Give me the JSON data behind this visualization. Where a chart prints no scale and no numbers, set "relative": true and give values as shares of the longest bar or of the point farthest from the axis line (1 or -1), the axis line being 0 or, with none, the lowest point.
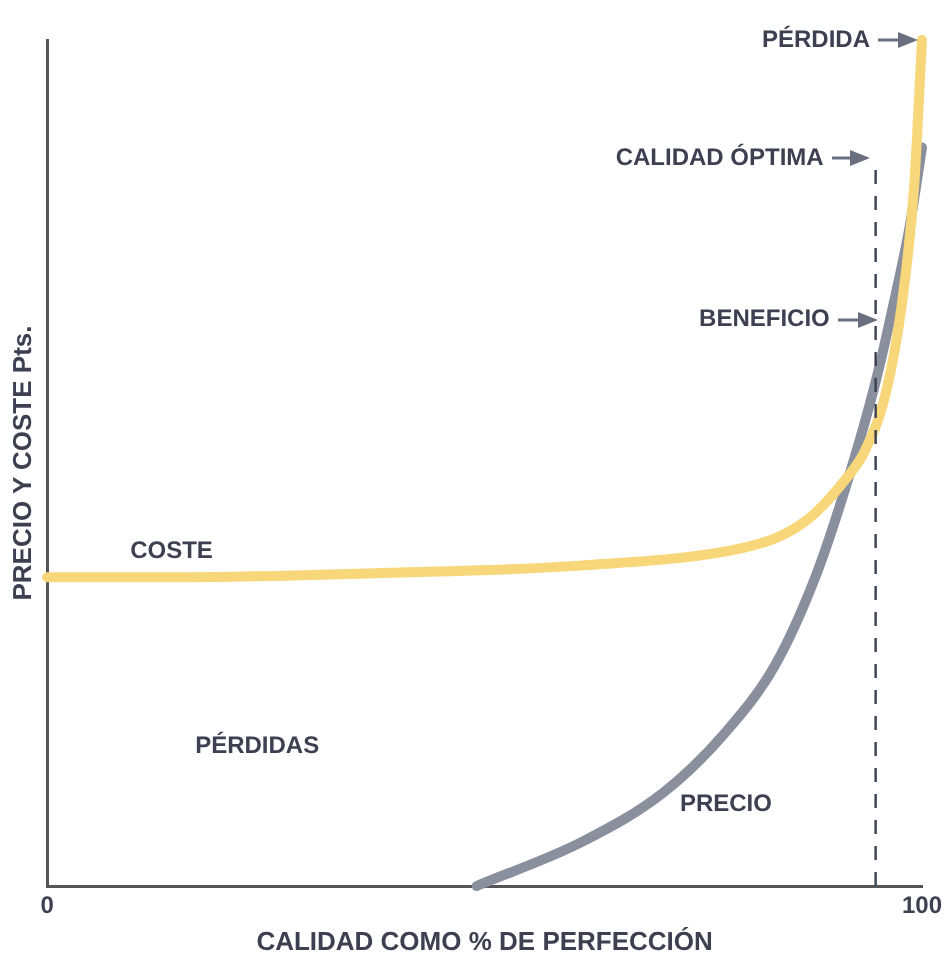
{
  "chart_data": {
    "type": "line",
    "relative": true,
    "xlabel": "CALIDAD COMO % DE PERFECCIÓN",
    "ylabel": "PRECIO Y COSTE Pts.",
    "xlim": [
      0,
      100
    ],
    "xticks": [
      0,
      100
    ],
    "grid": false,
    "legend": false,
    "marker": "none",
    "line_style": "solid",
    "series": [
      {
        "name": "COSTE",
        "color": "#f8d67a",
        "x": [
          0,
          15.2,
          38.2,
          61.3,
          79.7,
          84.3,
          87.8,
          91.2,
          93.5,
          95.9,
          97.7,
          99.1,
          100
        ],
        "values": [
          0.365,
          0.365,
          0.37,
          0.379,
          0.4,
          0.416,
          0.441,
          0.48,
          0.515,
          0.584,
          0.688,
          0.827,
          1
        ]
      },
      {
        "name": "PRECIO",
        "color": "#8a8f9e",
        "x": [
          49.1,
          61.3,
          70.5,
          77.4,
          83.2,
          87.8,
          91.2,
          94.7,
          97.0,
          98.6,
          100
        ],
        "values": [
          0,
          0.053,
          0.111,
          0.18,
          0.261,
          0.365,
          0.469,
          0.596,
          0.7,
          0.78,
          0.873
        ]
      }
    ],
    "ref_lines": [
      {
        "axis": "x",
        "value": 94.7,
        "label": "CALIDAD ÓPTIMA",
        "line_style": "dashed",
        "color": "#3d4050"
      }
    ],
    "annotations": [
      {
        "text": "PÉRDIDA",
        "x": 100,
        "y": 1
      },
      {
        "text": "BENEFICIO",
        "x": 95.4,
        "y": 0.67
      },
      "PÉRDIDAS"
    ]
  }
}
